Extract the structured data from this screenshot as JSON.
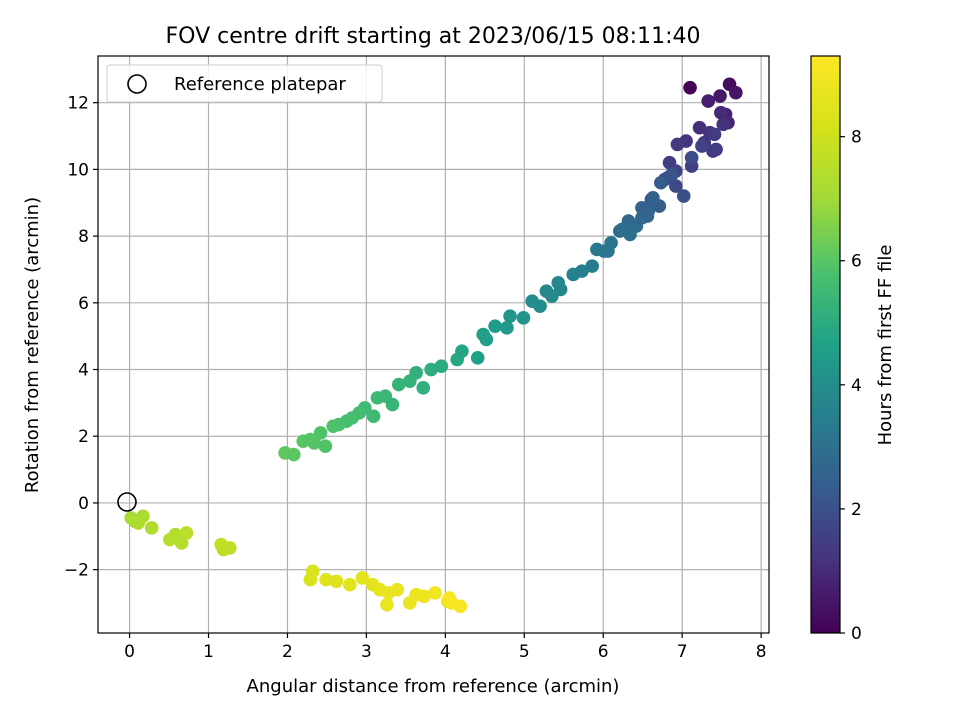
{
  "chart_data": {
    "type": "scatter",
    "title": "FOV centre drift starting at 2023/06/15 08:11:40",
    "xlabel": "Angular distance from reference (arcmin)",
    "ylabel": "Rotation from reference (arcmin)",
    "xlim": [
      -0.4,
      8.1
    ],
    "ylim": [
      -3.9,
      13.4
    ],
    "xticks": [
      0,
      1,
      2,
      3,
      4,
      5,
      6,
      7,
      8
    ],
    "yticks": [
      -2,
      0,
      2,
      4,
      6,
      8,
      10,
      12
    ],
    "grid": true,
    "legend": {
      "placement": "upper-left",
      "entries": [
        {
          "label": "Reference platepar",
          "marker": "open-circle",
          "x": 0,
          "y": 0
        }
      ]
    },
    "colorbar": {
      "label": "Hours from first FF file",
      "range": [
        0,
        9.3
      ],
      "ticks": [
        0,
        2,
        4,
        6,
        8
      ],
      "colormap": "viridis"
    },
    "series": [
      {
        "x": [
          7.1,
          7.6,
          7.68,
          7.48,
          7.33,
          7.55,
          7.58,
          7.22,
          7.35,
          7.05,
          7.28,
          6.94,
          7.39,
          6.84,
          7.43,
          6.92,
          7.12,
          6.82,
          6.92,
          6.78,
          7.02,
          6.61,
          6.71,
          6.49,
          6.56,
          6.32,
          6.42,
          6.21,
          6.34,
          6.1,
          6.01,
          5.86,
          5.62,
          5.43,
          5.28,
          5.1,
          4.99,
          4.82,
          4.63,
          4.48,
          4.15,
          3.82,
          3.63,
          3.41,
          3.14,
          2.98,
          2.82,
          2.65,
          2.42,
          2.2,
          1.97,
          2.08,
          2.34,
          2.58,
          2.91,
          3.24,
          3.55,
          3.95,
          4.21,
          4.52,
          4.78,
          5.2,
          5.46,
          5.73,
          6.06,
          6.24,
          6.49,
          6.57,
          6.63,
          6.73,
          6.87,
          7.12,
          7.25,
          7.41,
          7.52,
          7.49,
          5.92,
          5.35,
          4.41,
          3.72,
          3.09,
          2.75,
          2.29,
          2.48,
          3.33,
          0.02,
          0.07,
          0.17,
          0.11,
          0.28,
          0.58,
          0.66,
          0.51,
          0.72,
          1.19,
          1.27,
          1.16,
          2.29,
          2.32,
          2.49,
          2.62,
          2.79,
          2.95,
          3.08,
          3.17,
          3.28,
          3.39,
          3.55,
          3.63,
          3.73,
          3.87,
          4.03,
          4.08,
          4.19,
          3.26,
          4.05
        ],
        "y": [
          12.45,
          12.55,
          12.3,
          12.2,
          12.05,
          11.65,
          11.4,
          11.25,
          11.1,
          10.85,
          10.8,
          10.75,
          10.55,
          10.2,
          10.6,
          9.95,
          10.1,
          9.75,
          9.5,
          9.7,
          9.2,
          9.1,
          8.9,
          8.85,
          8.6,
          8.45,
          8.3,
          8.15,
          8.05,
          7.8,
          7.55,
          7.1,
          6.85,
          6.6,
          6.35,
          6.05,
          5.55,
          5.6,
          5.3,
          5.05,
          4.3,
          4.0,
          3.9,
          3.55,
          3.15,
          2.85,
          2.55,
          2.35,
          2.1,
          1.85,
          1.5,
          1.45,
          1.8,
          2.3,
          2.7,
          3.2,
          3.65,
          4.1,
          4.55,
          4.9,
          5.25,
          5.9,
          6.4,
          6.95,
          7.55,
          8.2,
          8.55,
          8.75,
          9.15,
          9.6,
          9.85,
          10.35,
          10.7,
          11.05,
          11.35,
          11.7,
          7.6,
          6.2,
          4.35,
          3.45,
          2.6,
          2.45,
          1.9,
          1.7,
          2.95,
          -0.45,
          -0.55,
          -0.4,
          -0.6,
          -0.75,
          -0.95,
          -1.2,
          -1.1,
          -0.9,
          -1.4,
          -1.35,
          -1.25,
          -2.3,
          -2.05,
          -2.3,
          -2.35,
          -2.45,
          -2.25,
          -2.45,
          -2.6,
          -2.7,
          -2.6,
          -3.0,
          -2.75,
          -2.8,
          -2.7,
          -2.95,
          -3.0,
          -3.1,
          -3.05,
          -2.85
        ],
        "t": [
          0.05,
          0.25,
          0.45,
          0.55,
          0.7,
          0.8,
          0.9,
          1.05,
          1.15,
          1.25,
          1.3,
          1.4,
          1.35,
          1.5,
          1.45,
          1.6,
          1.55,
          1.7,
          1.8,
          1.9,
          2.0,
          2.2,
          2.4,
          2.5,
          2.6,
          2.7,
          2.8,
          2.9,
          3.0,
          3.1,
          3.2,
          3.4,
          3.6,
          3.7,
          3.8,
          4.0,
          4.2,
          4.3,
          4.5,
          4.6,
          4.9,
          5.1,
          5.2,
          5.3,
          5.5,
          5.6,
          5.7,
          5.8,
          5.9,
          6.0,
          6.1,
          6.05,
          5.95,
          5.85,
          5.65,
          5.45,
          5.25,
          5.0,
          4.8,
          4.55,
          4.35,
          3.95,
          3.75,
          3.45,
          3.2,
          2.95,
          2.7,
          2.6,
          2.5,
          2.3,
          2.1,
          1.85,
          1.6,
          1.4,
          1.2,
          1.0,
          3.3,
          3.85,
          4.65,
          5.15,
          5.55,
          5.75,
          5.95,
          5.9,
          5.35,
          7.15,
          7.2,
          7.25,
          7.3,
          7.35,
          7.4,
          7.45,
          7.5,
          7.55,
          7.6,
          7.65,
          7.7,
          8.3,
          8.35,
          8.4,
          8.45,
          8.5,
          8.55,
          8.6,
          8.65,
          8.7,
          8.75,
          8.8,
          8.85,
          8.9,
          8.95,
          9.0,
          9.05,
          9.1,
          8.8,
          9.15
        ]
      }
    ]
  }
}
